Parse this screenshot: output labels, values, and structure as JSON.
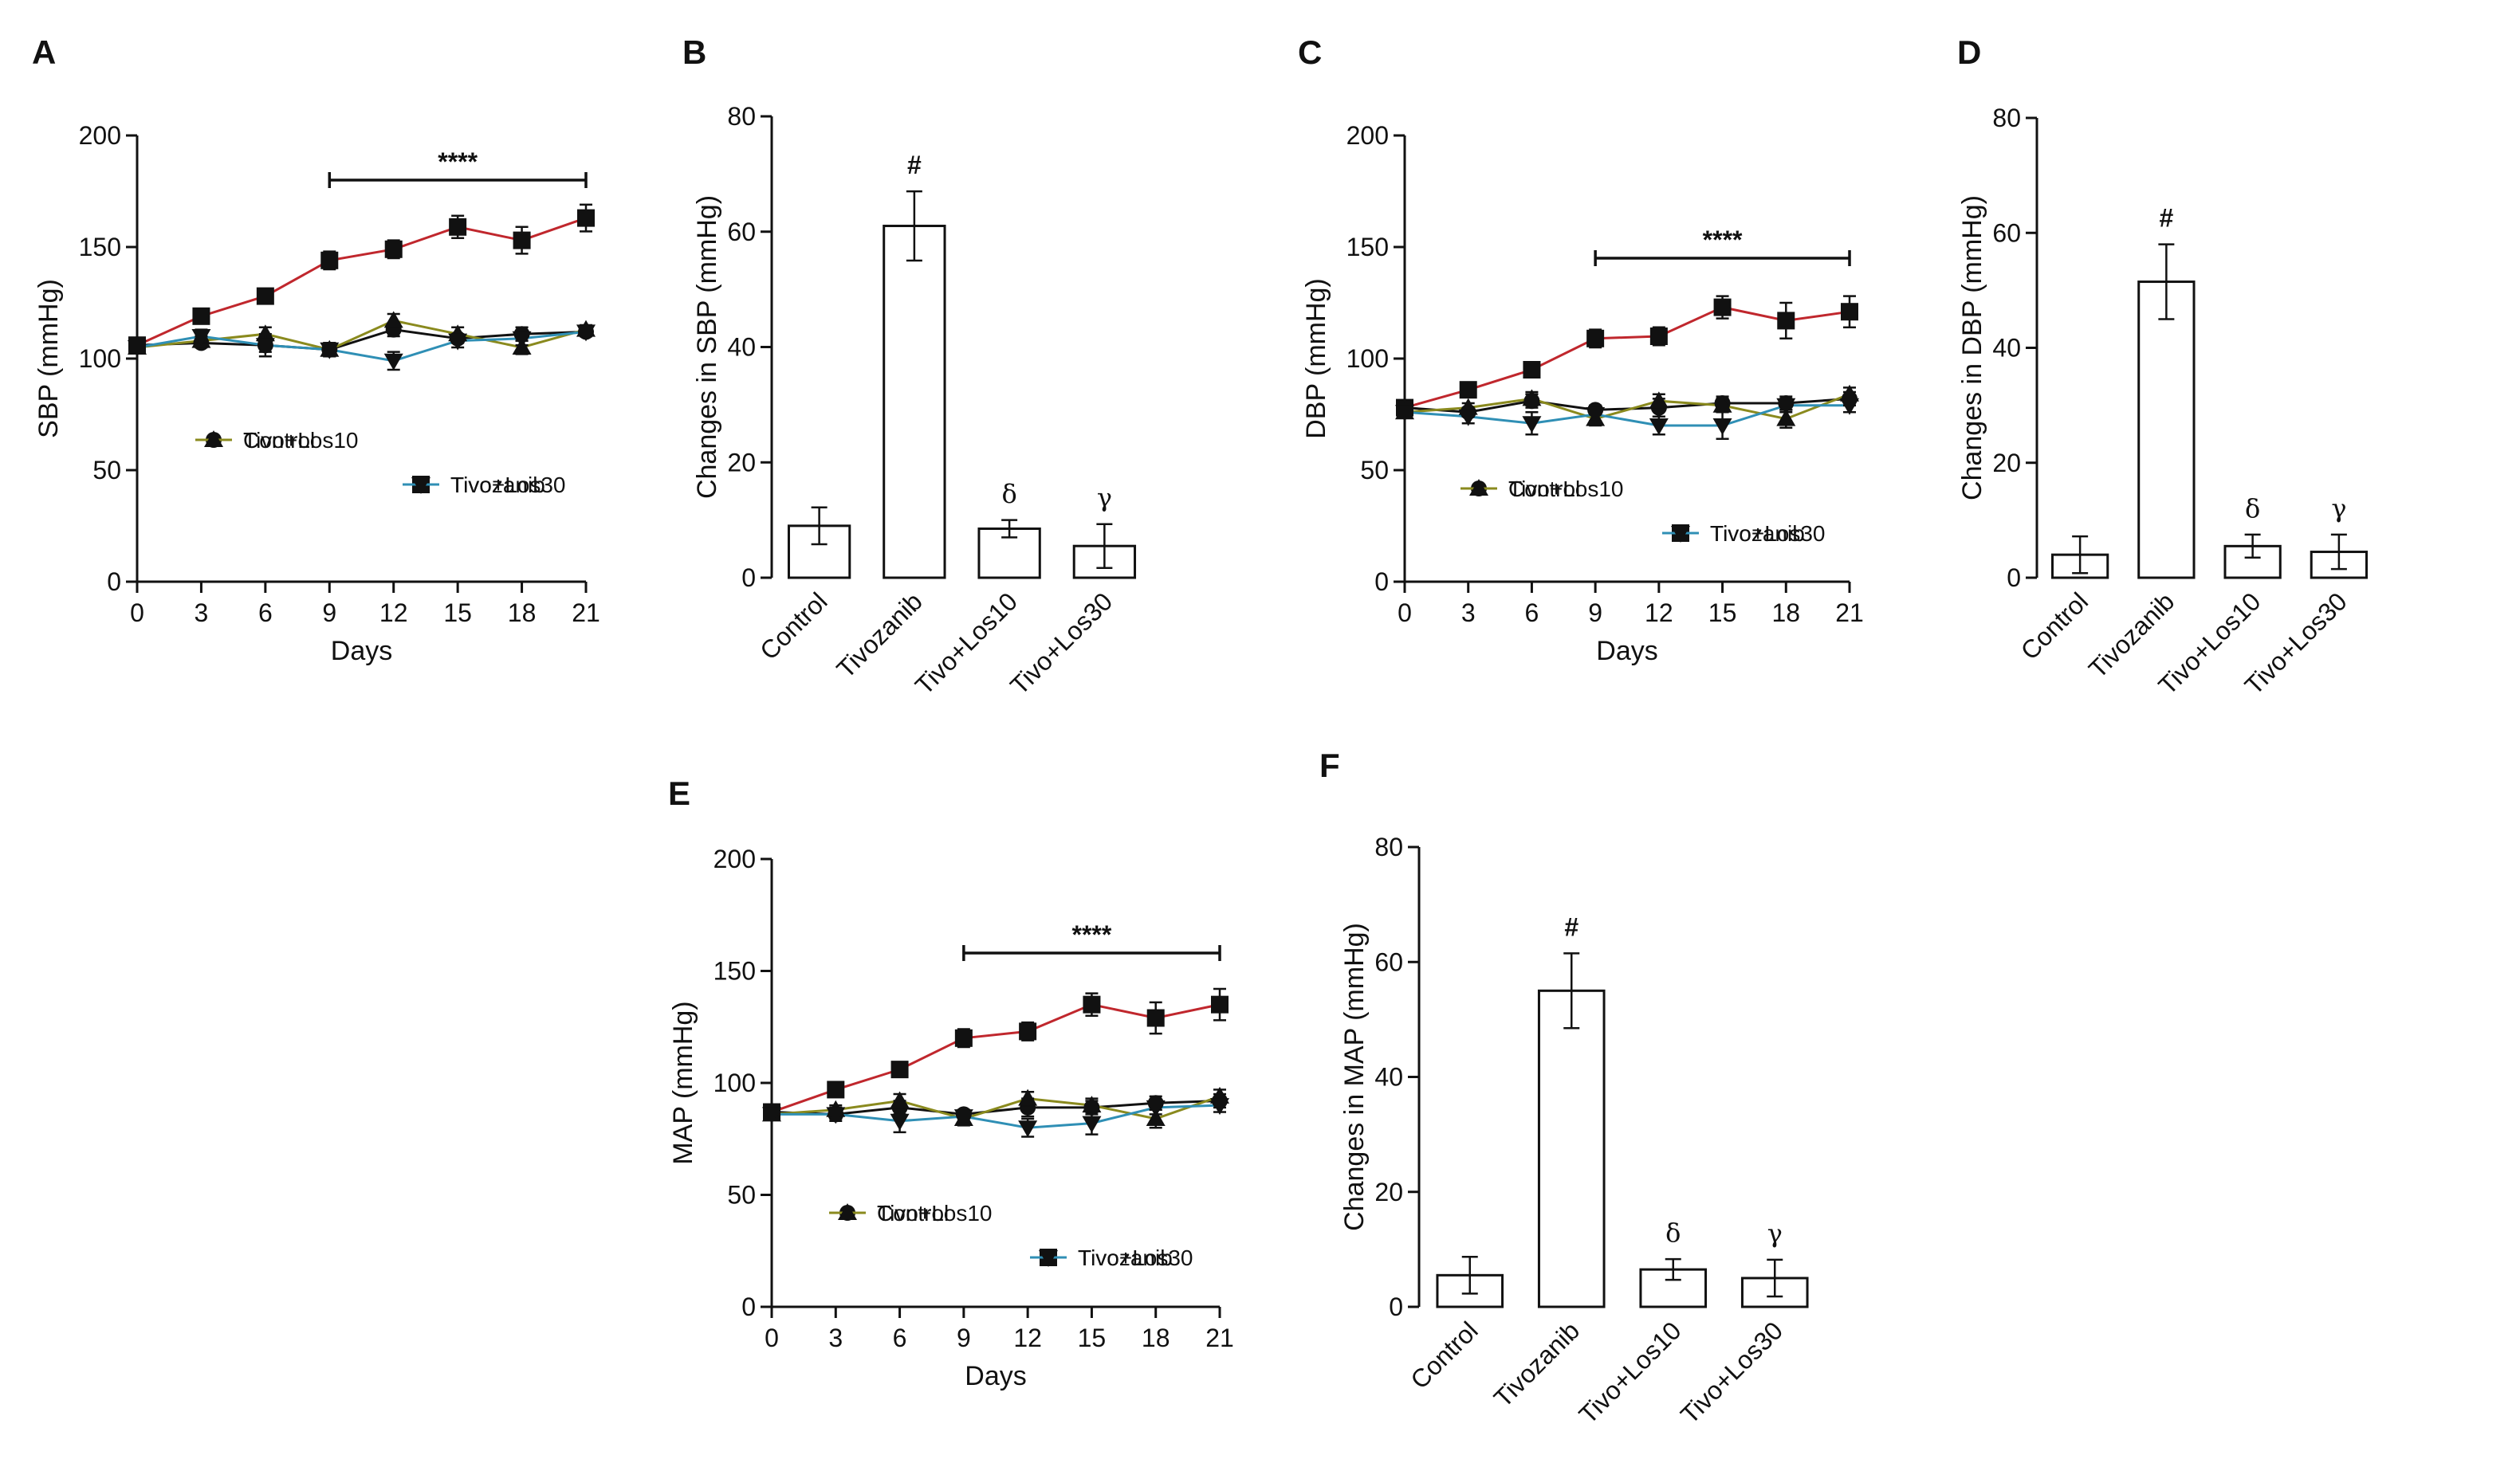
{
  "figure": {
    "panels": [
      "A",
      "B",
      "C",
      "D",
      "E",
      "F"
    ]
  },
  "colors": {
    "control": "#111111",
    "tivozanib": "#c0272d",
    "tivo_los10": "#8a8a1e",
    "tivo_los30": "#2f8fb5",
    "axis": "#111111"
  },
  "legend_labels": [
    "Control",
    "Tivozanib",
    "Tivo+Los10",
    "Tivo+Los30"
  ],
  "chart_data": [
    {
      "panel": "A",
      "type": "line",
      "xlabel": "Days",
      "ylabel": "SBP (mmHg)",
      "x": [
        0,
        3,
        6,
        9,
        12,
        15,
        18,
        21
      ],
      "xticks": [
        "0",
        "3",
        "6",
        "9",
        "12",
        "15",
        "18",
        "21"
      ],
      "ylim": [
        0,
        200
      ],
      "yticks": [
        "0",
        "50",
        "100",
        "150",
        "200"
      ],
      "significance": {
        "label": "****",
        "from": 9,
        "to": 21,
        "y": 180
      },
      "series": [
        {
          "name": "Control",
          "marker": "circle",
          "values": [
            106,
            107,
            106,
            104,
            113,
            109,
            111,
            112
          ],
          "err": [
            2,
            2,
            3,
            2,
            3,
            2,
            3,
            2
          ]
        },
        {
          "name": "Tivozanib",
          "marker": "square",
          "values": [
            106,
            119,
            128,
            144,
            149,
            159,
            153,
            163
          ],
          "err": [
            2,
            2,
            3,
            4,
            4,
            5,
            6,
            6
          ]
        },
        {
          "name": "Tivo+Los10",
          "marker": "triangle-up",
          "values": [
            105,
            108,
            111,
            104,
            117,
            111,
            105,
            113
          ],
          "err": [
            2,
            2,
            3,
            3,
            3,
            3,
            3,
            2
          ]
        },
        {
          "name": "Tivo+Los30",
          "marker": "triangle-down",
          "values": [
            105,
            110,
            106,
            104,
            99,
            108,
            109,
            112
          ],
          "err": [
            2,
            3,
            5,
            3,
            4,
            3,
            3,
            2
          ]
        }
      ]
    },
    {
      "panel": "B",
      "type": "bar",
      "ylabel": "Changes in SBP (mmHg)",
      "categories": [
        "Control",
        "Tivozanib",
        "Tivo+Los10",
        "Tivo+Los30"
      ],
      "values": [
        9,
        61,
        8.5,
        5.5
      ],
      "err": [
        3.2,
        6,
        1.5,
        3.8
      ],
      "annotations": [
        "",
        "#",
        "δ",
        "γ"
      ],
      "ylim": [
        0,
        80
      ],
      "yticks": [
        "0",
        "20",
        "40",
        "60",
        "80"
      ]
    },
    {
      "panel": "C",
      "type": "line",
      "xlabel": "Days",
      "ylabel": "DBP (mmHg)",
      "x": [
        0,
        3,
        6,
        9,
        12,
        15,
        18,
        21
      ],
      "xticks": [
        "0",
        "3",
        "6",
        "9",
        "12",
        "15",
        "18",
        "21"
      ],
      "ylim": [
        0,
        200
      ],
      "yticks": [
        "0",
        "50",
        "100",
        "150",
        "200"
      ],
      "significance": {
        "label": "****",
        "from": 9,
        "to": 21,
        "y": 145
      },
      "series": [
        {
          "name": "Control",
          "marker": "circle",
          "values": [
            78,
            76,
            81,
            77,
            78,
            80,
            80,
            82
          ],
          "err": [
            2,
            2,
            3,
            2,
            4,
            3,
            3,
            3
          ]
        },
        {
          "name": "Tivozanib",
          "marker": "square",
          "values": [
            78,
            86,
            95,
            109,
            110,
            123,
            117,
            121
          ],
          "err": [
            2,
            2,
            3,
            4,
            4,
            5,
            8,
            7
          ]
        },
        {
          "name": "Tivo+Los10",
          "marker": "triangle-up",
          "values": [
            76,
            78,
            82,
            73,
            81,
            79,
            73,
            84
          ],
          "err": [
            2,
            2,
            3,
            3,
            3,
            3,
            4,
            3
          ]
        },
        {
          "name": "Tivo+Los30",
          "marker": "triangle-down",
          "values": [
            76,
            74,
            71,
            75,
            70,
            70,
            79,
            79
          ],
          "err": [
            2,
            3,
            5,
            3,
            4,
            6,
            3,
            3
          ]
        }
      ]
    },
    {
      "panel": "D",
      "type": "bar",
      "ylabel": "Changes in DBP (mmHg)",
      "categories": [
        "Control",
        "Tivozanib",
        "Tivo+Los10",
        "Tivo+Los30"
      ],
      "values": [
        4,
        51.5,
        5.5,
        4.5
      ],
      "err": [
        3.2,
        6.5,
        2,
        3
      ],
      "annotations": [
        "",
        "#",
        "δ",
        "γ"
      ],
      "ylim": [
        0,
        80
      ],
      "yticks": [
        "0",
        "20",
        "40",
        "60",
        "80"
      ]
    },
    {
      "panel": "E",
      "type": "line",
      "xlabel": "Days",
      "ylabel": "MAP (mmHg)",
      "x": [
        0,
        3,
        6,
        9,
        12,
        15,
        18,
        21
      ],
      "xticks": [
        "0",
        "3",
        "6",
        "9",
        "12",
        "15",
        "18",
        "21"
      ],
      "ylim": [
        0,
        200
      ],
      "yticks": [
        "0",
        "50",
        "100",
        "150",
        "200"
      ],
      "significance": {
        "label": "****",
        "from": 9,
        "to": 21,
        "y": 158
      },
      "series": [
        {
          "name": "Control",
          "marker": "circle",
          "values": [
            87,
            86,
            89,
            86,
            89,
            89,
            91,
            92
          ],
          "err": [
            2,
            2,
            3,
            2,
            4,
            3,
            3,
            3
          ]
        },
        {
          "name": "Tivozanib",
          "marker": "square",
          "values": [
            87,
            97,
            106,
            120,
            123,
            135,
            129,
            135
          ],
          "err": [
            2,
            2,
            3,
            4,
            4,
            5,
            7,
            7
          ]
        },
        {
          "name": "Tivo+Los10",
          "marker": "triangle-up",
          "values": [
            86,
            88,
            92,
            84,
            93,
            90,
            84,
            94
          ],
          "err": [
            2,
            2,
            3,
            3,
            3,
            3,
            4,
            3
          ]
        },
        {
          "name": "Tivo+Los30",
          "marker": "triangle-down",
          "values": [
            86,
            86,
            83,
            85,
            80,
            82,
            89,
            90
          ],
          "err": [
            2,
            3,
            5,
            3,
            4,
            5,
            3,
            3
          ]
        }
      ]
    },
    {
      "panel": "F",
      "type": "bar",
      "ylabel": "Changes in MAP (mmHg)",
      "categories": [
        "Control",
        "Tivozanib",
        "Tivo+Los10",
        "Tivo+Los30"
      ],
      "values": [
        5.5,
        55,
        6.5,
        5
      ],
      "err": [
        3.2,
        6.5,
        1.8,
        3.2
      ],
      "annotations": [
        "",
        "#",
        "δ",
        "γ"
      ],
      "ylim": [
        0,
        80
      ],
      "yticks": [
        "0",
        "20",
        "40",
        "60",
        "80"
      ]
    }
  ]
}
